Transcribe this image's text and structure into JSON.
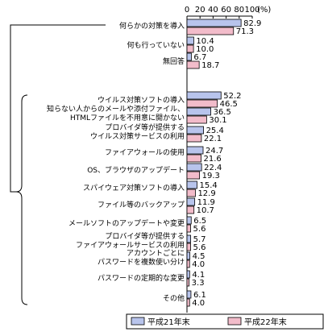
{
  "chart_data": {
    "type": "bar",
    "orientation": "horizontal",
    "xlim": [
      0,
      100
    ],
    "x_ticks": [
      "0",
      "20",
      "40",
      "60",
      "80",
      "100"
    ],
    "unit_label": "(%)",
    "grid": false,
    "categories": [
      [
        "何らかの対策を導入"
      ],
      [
        "何も行っていない"
      ],
      [
        "無回答"
      ],
      [
        "ウイルス対策ソフトの導入"
      ],
      [
        "知らない人からのメールや添付ファイル、",
        "HTMLファイルを不用意に開かない"
      ],
      [
        "プロバイダ等が提供する",
        "ウイルス対策サービスの利用"
      ],
      [
        "ファイアウォールの使用"
      ],
      [
        "OS、ブラウザのアップデート"
      ],
      [
        "スパイウェア対策ソフトの導入"
      ],
      [
        "ファイル等のバックアップ"
      ],
      [
        "メールソフトのアップデートや変更"
      ],
      [
        "プロバイダ等が提供する",
        "ファイアウォールサービスの利用"
      ],
      [
        "アカウントごとに",
        "パスワードを複数使い分け"
      ],
      [
        "パスワードの定期的な変更"
      ],
      [
        "その他"
      ]
    ],
    "series": [
      {
        "name": "平成21年末",
        "color": "#b8c4ec",
        "values": [
          82.9,
          10.4,
          6.7,
          52.2,
          36.5,
          25.4,
          24.7,
          22.4,
          15.4,
          11.9,
          6.5,
          5.7,
          4.5,
          4.1,
          6.1
        ]
      },
      {
        "name": "平成22年末",
        "color": "#f2bcca",
        "values": [
          71.3,
          10.0,
          18.7,
          46.5,
          30.1,
          22.1,
          21.6,
          19.3,
          12.9,
          10.7,
          5.6,
          5.6,
          4.0,
          3.3,
          4.0
        ]
      }
    ],
    "legend_position": "bottom"
  }
}
